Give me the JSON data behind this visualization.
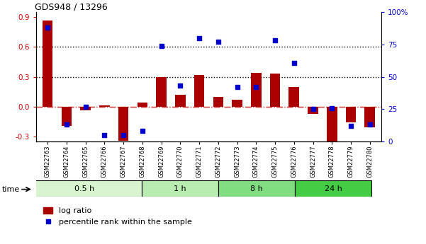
{
  "title": "GDS948 / 13296",
  "samples": [
    "GSM22763",
    "GSM22764",
    "GSM22765",
    "GSM22766",
    "GSM22767",
    "GSM22768",
    "GSM22769",
    "GSM22770",
    "GSM22771",
    "GSM22772",
    "GSM22773",
    "GSM22774",
    "GSM22775",
    "GSM22776",
    "GSM22777",
    "GSM22778",
    "GSM22779",
    "GSM22780"
  ],
  "log_ratio": [
    0.87,
    -0.19,
    -0.04,
    0.01,
    -0.34,
    0.04,
    0.3,
    0.12,
    0.32,
    0.1,
    0.07,
    0.34,
    0.33,
    0.2,
    -0.07,
    -0.38,
    -0.16,
    -0.21
  ],
  "percentile": [
    88,
    13,
    27,
    5,
    5,
    8,
    74,
    43,
    80,
    77,
    42,
    42,
    78,
    61,
    25,
    26,
    12,
    13
  ],
  "groups": [
    {
      "label": "0.5 h",
      "start": 0,
      "end": 6,
      "color": "#d8f5d0"
    },
    {
      "label": "1 h",
      "start": 6,
      "end": 10,
      "color": "#b8ecb0"
    },
    {
      "label": "8 h",
      "start": 10,
      "end": 14,
      "color": "#80dd80"
    },
    {
      "label": "24 h",
      "start": 14,
      "end": 18,
      "color": "#44cc44"
    }
  ],
  "ylim_left": [
    -0.35,
    0.95
  ],
  "ylim_right": [
    0,
    100
  ],
  "bar_color": "#aa0000",
  "dot_color": "#0000cc",
  "zero_line_color": "#cc2222",
  "left_ticks": [
    -0.3,
    0.0,
    0.3,
    0.6,
    0.9
  ],
  "right_ticks": [
    0,
    25,
    50,
    75,
    100
  ],
  "right_tick_labels": [
    "0",
    "25",
    "50",
    "75",
    "100%"
  ]
}
